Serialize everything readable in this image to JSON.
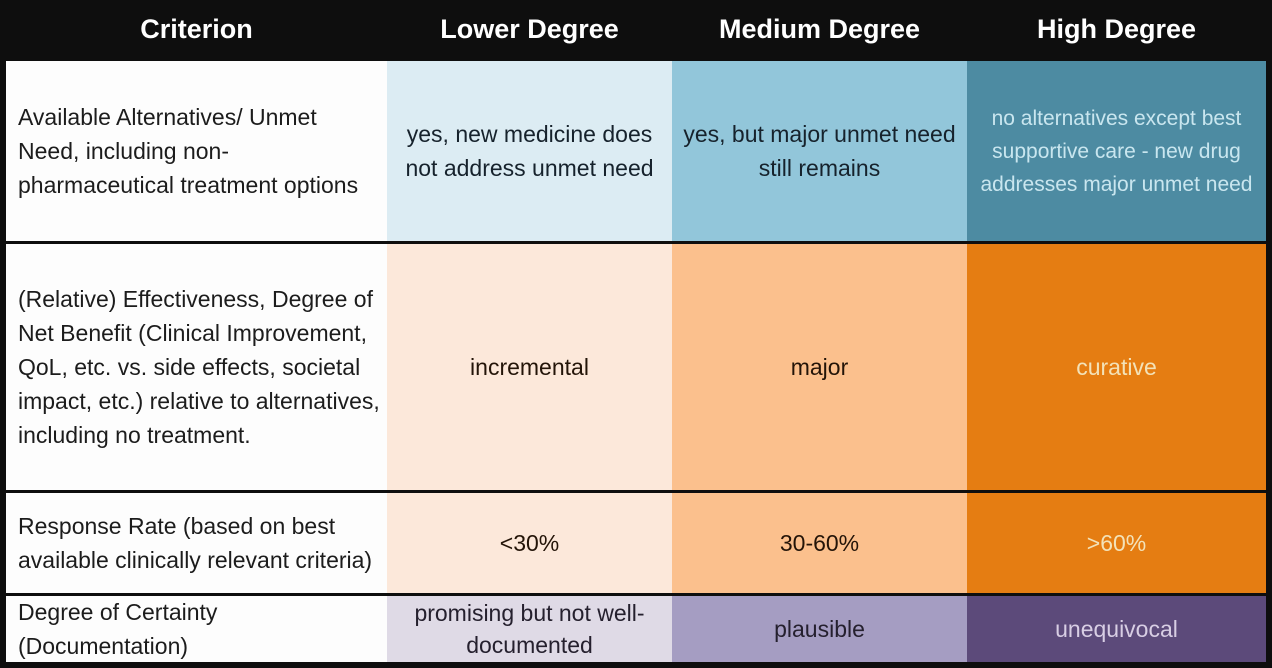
{
  "table": {
    "header": {
      "criterion": "Criterion",
      "lower": "Lower Degree",
      "medium": "Medium Degree",
      "high": "High Degree"
    },
    "rows": [
      {
        "criterion": "Available Alternatives/ Unmet Need, including non-pharmaceutical treatment options",
        "lower": "yes, new medicine does not address unmet need",
        "medium": "yes, but major unmet need still remains",
        "high": "no alternatives except best supportive care - new drug addresses major unmet need",
        "theme": "blue"
      },
      {
        "criterion": "(Relative) Effectiveness, Degree of Net Benefit (Clinical Improvement, QoL, etc. vs. side effects, societal impact, etc.) relative to alternatives, including no treatment.",
        "lower": "incremental",
        "medium": "major",
        "high": "curative",
        "theme": "orange"
      },
      {
        "criterion": "Response Rate (based on best available clinically relevant criteria)",
        "lower": "<30%",
        "medium": "30-60%",
        "high": ">60%",
        "theme": "orange"
      },
      {
        "criterion": "Degree of Certainty (Documentation)",
        "lower": "promising but not well-documented",
        "medium": "plausible",
        "high": "unequivocal",
        "theme": "purple"
      }
    ],
    "colors": {
      "header_bg": "#0e0e0e",
      "header_text": "#ffffff",
      "criterion_bg": "#fdfdfd",
      "dark_text": "#1c1c1c",
      "blue_lower": "#dcecf3",
      "blue_medium": "#92c6da",
      "blue_high": "#4d8ba2",
      "blue_high_text": "#c9e6ef",
      "orange_lower": "#fce8da",
      "orange_medium": "#fbc08d",
      "orange_high": "#e57d12",
      "orange_high_text": "#f3e2b8",
      "purple_lower": "#dfdae6",
      "purple_medium": "#a59dc2",
      "purple_high": "#5c4a7a",
      "purple_high_text": "#d8cee4"
    }
  }
}
